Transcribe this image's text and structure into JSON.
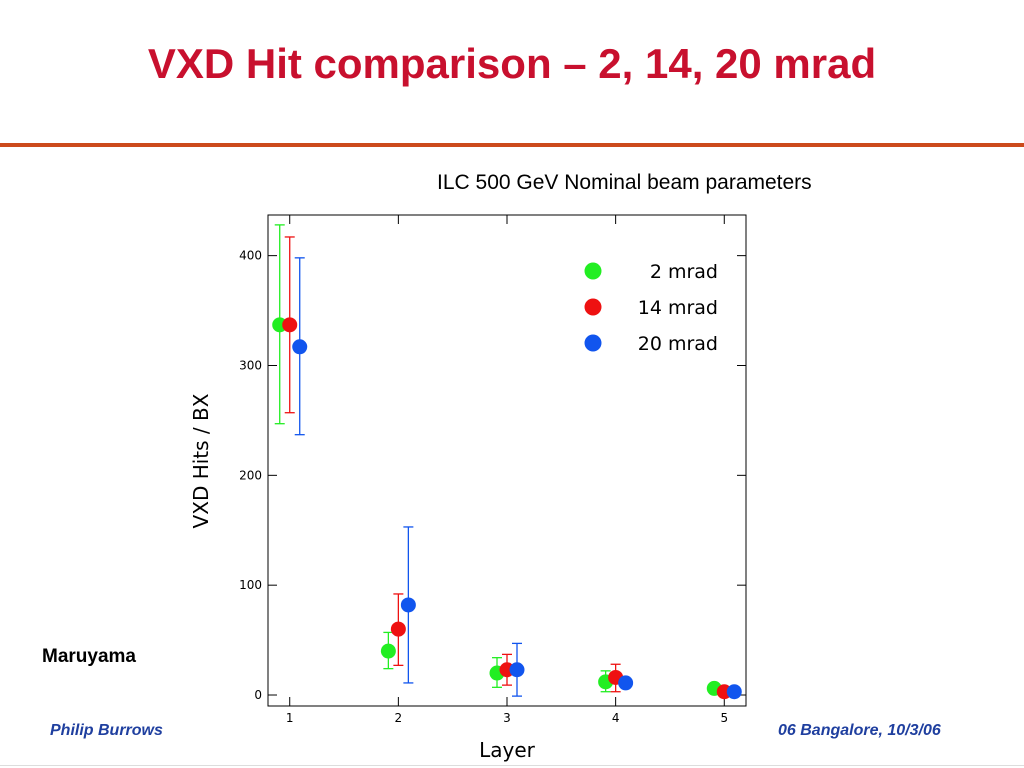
{
  "slide": {
    "title": "VXD Hit comparison – 2, 14, 20 mrad",
    "author": "Maruyama",
    "footer_left": "Philip Burrows",
    "footer_right": "06 Bangalore, 10/3/06",
    "title_color": "#c8102e",
    "rule_color": "#cc4a1c",
    "footer_color": "#1f3f9f"
  },
  "chart_data": {
    "type": "scatter",
    "title": "ILC 500 GeV Nominal beam parameters",
    "xlabel": "Layer",
    "ylabel": "VXD Hits / BX",
    "x_ticks": [
      1,
      2,
      3,
      4,
      5
    ],
    "y_ticks": [
      0,
      100,
      200,
      300,
      400
    ],
    "xlim": [
      0.8,
      5.2
    ],
    "ylim": [
      -10,
      437
    ],
    "grid": false,
    "legend_position": "top-right",
    "series": [
      {
        "name": "2 mrad",
        "color": "#22ee22",
        "points": [
          {
            "x": 1,
            "y": 337,
            "err_low": 247,
            "err_high": 428
          },
          {
            "x": 2,
            "y": 40,
            "err_low": 24,
            "err_high": 57
          },
          {
            "x": 3,
            "y": 20,
            "err_low": 7,
            "err_high": 34
          },
          {
            "x": 4,
            "y": 12,
            "err_low": 3,
            "err_high": 22
          },
          {
            "x": 5,
            "y": 6,
            "err_low": null,
            "err_high": null
          }
        ]
      },
      {
        "name": "14 mrad",
        "color": "#ee1111",
        "points": [
          {
            "x": 1,
            "y": 337,
            "err_low": 257,
            "err_high": 417
          },
          {
            "x": 2,
            "y": 60,
            "err_low": 27,
            "err_high": 92
          },
          {
            "x": 3,
            "y": 23,
            "err_low": 9,
            "err_high": 37
          },
          {
            "x": 4,
            "y": 16,
            "err_low": 3,
            "err_high": 28
          },
          {
            "x": 5,
            "y": 3,
            "err_low": null,
            "err_high": null
          }
        ]
      },
      {
        "name": "20 mrad",
        "color": "#1155ee",
        "points": [
          {
            "x": 1,
            "y": 317,
            "err_low": 237,
            "err_high": 398
          },
          {
            "x": 2,
            "y": 82,
            "err_low": 11,
            "err_high": 153
          },
          {
            "x": 3,
            "y": 23,
            "err_low": -1,
            "err_high": 47
          },
          {
            "x": 4,
            "y": 11,
            "err_low": null,
            "err_high": null
          },
          {
            "x": 5,
            "y": 3,
            "err_low": null,
            "err_high": null
          }
        ]
      }
    ]
  }
}
